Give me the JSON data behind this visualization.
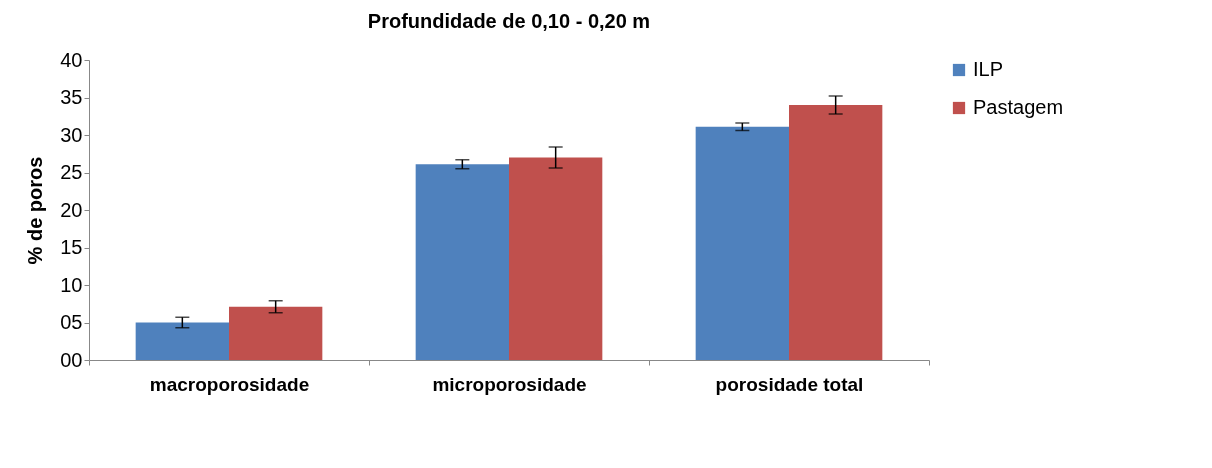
{
  "chart_data": {
    "type": "bar",
    "title": "Profundidade de 0,10 - 0,20 m",
    "ylabel": "% de poros",
    "categories": [
      "macroporosidade",
      "microporosidade",
      "porosidade total"
    ],
    "series": [
      {
        "name": "ILP",
        "color": "#4f81bd",
        "values": [
          5.0,
          26.1,
          31.1
        ],
        "errors": [
          0.7,
          0.6,
          0.5
        ]
      },
      {
        "name": "Pastagem",
        "color": "#c0504d",
        "values": [
          7.1,
          27.0,
          34.0
        ],
        "errors": [
          0.8,
          1.4,
          1.2
        ]
      }
    ],
    "ylim": [
      0,
      40
    ],
    "yticks": [
      {
        "value": 0,
        "label": "00"
      },
      {
        "value": 5,
        "label": "05"
      },
      10,
      15,
      20,
      25,
      30,
      35,
      40
    ],
    "grid": false,
    "legend": "right"
  }
}
